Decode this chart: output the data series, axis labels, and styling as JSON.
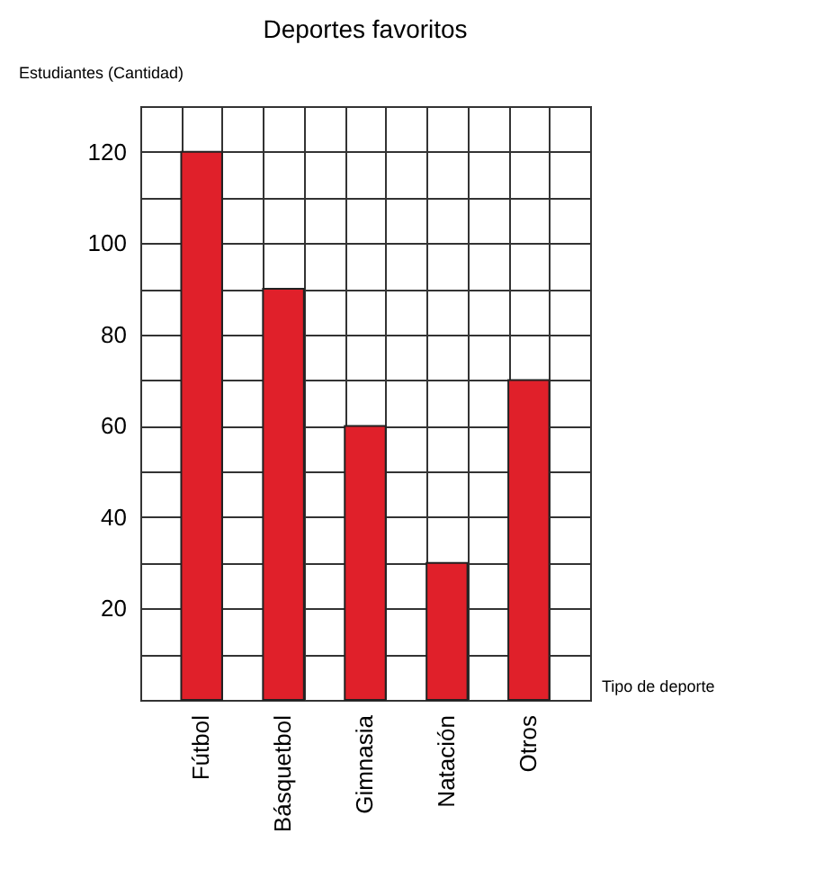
{
  "chart_data": {
    "type": "bar",
    "title": "Deportes favoritos",
    "xlabel": "Tipo de deporte",
    "ylabel": "Estudiantes (Cantidad)",
    "categories": [
      "Fútbol",
      "Básquetbol",
      "Gimnasia",
      "Natación",
      "Otros"
    ],
    "values": [
      120,
      90,
      60,
      30,
      70
    ],
    "color": "#e0202a",
    "ylim": [
      0,
      130
    ],
    "yticks": [
      {
        "value": 0,
        "label": null
      },
      {
        "value": 10,
        "label": null
      },
      20,
      {
        "value": 30,
        "label": null
      },
      40,
      {
        "value": 50,
        "label": null
      },
      60,
      {
        "value": 70,
        "label": null
      },
      80,
      {
        "value": 90,
        "label": null
      },
      100,
      {
        "value": 110,
        "label": null
      },
      120,
      {
        "value": 130,
        "label": null
      }
    ],
    "grid": true
  }
}
